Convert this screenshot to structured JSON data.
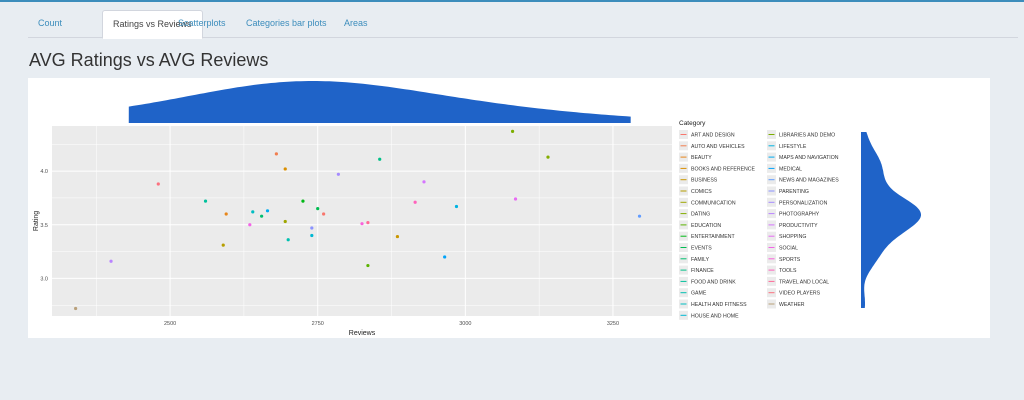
{
  "tabs": [
    {
      "label": "Count",
      "active": false
    },
    {
      "label": "Ratings vs Reviews",
      "active": true
    },
    {
      "label": "Scatterplots",
      "active": false
    },
    {
      "label": "Categories bar plots",
      "active": false
    },
    {
      "label": "Areas",
      "active": false
    }
  ],
  "page_title": "AVG Ratings vs AVG Reviews",
  "chart_data": {
    "type": "scatter",
    "title": "",
    "xlabel": "Reviews",
    "ylabel": "Rating",
    "xlim": [
      2300,
      3350
    ],
    "ylim": [
      2.65,
      4.42
    ],
    "x_ticks": [
      2500,
      2750,
      3000,
      3250
    ],
    "y_ticks": [
      3.0,
      3.5,
      4.0
    ],
    "grid": true,
    "background": "#ebebeb",
    "legend_title": "Category",
    "legend_position": "right",
    "marginal_fill": "#1f63c8",
    "marginal_top_density": "smooth single peak around 2700 reviews",
    "marginal_right_density": "bimodal with peaks near 3.9 and 3.5 rating",
    "series": [
      {
        "name": "ART AND DESIGN",
        "color": "#f8766d",
        "x": 2760,
        "y": 3.6
      },
      {
        "name": "AUTO AND VEHICLES",
        "color": "#f17e4f",
        "x": 2680,
        "y": 4.16
      },
      {
        "name": "BEAUTY",
        "color": "#e7861b",
        "x": 2595,
        "y": 3.6
      },
      {
        "name": "BOOKS AND REFERENCE",
        "color": "#da8f00",
        "x": 2695,
        "y": 4.02
      },
      {
        "name": "BUSINESS",
        "color": "#ca9700",
        "x": 2885,
        "y": 3.39
      },
      {
        "name": "COMICS",
        "color": "#b69e00",
        "x": 2590,
        "y": 3.31
      },
      {
        "name": "COMMUNICATION",
        "color": "#9fa600",
        "x": 2695,
        "y": 3.53
      },
      {
        "name": "DATING",
        "color": "#84ad00",
        "x": 3140,
        "y": 4.13
      },
      {
        "name": "EDUCATION",
        "color": "#5bb300",
        "x": 2835,
        "y": 3.12
      },
      {
        "name": "ENTERTAINMENT",
        "color": "#00b816",
        "x": 2725,
        "y": 3.72
      },
      {
        "name": "EVENTS",
        "color": "#00bc51",
        "x": 2750,
        "y": 3.65
      },
      {
        "name": "FAMILY",
        "color": "#00be6f",
        "x": 2655,
        "y": 3.58
      },
      {
        "name": "FINANCE",
        "color": "#00c087",
        "x": 2855,
        "y": 4.11
      },
      {
        "name": "FOOD AND DRINK",
        "color": "#00c19c",
        "x": 2560,
        "y": 3.72
      },
      {
        "name": "GAME",
        "color": "#00c0b0",
        "x": 2700,
        "y": 3.36
      },
      {
        "name": "HEALTH AND FITNESS",
        "color": "#00bdc2",
        "x": 2640,
        "y": 3.62
      },
      {
        "name": "HOUSE AND HOME",
        "color": "#00b8d3",
        "x": 2740,
        "y": 3.4
      },
      {
        "name": "LIBRARIES AND DEMO",
        "color": "#7cae00",
        "x": 3080,
        "y": 4.37
      },
      {
        "name": "LIFESTYLE",
        "color": "#00b3e2",
        "x": 2985,
        "y": 3.67
      },
      {
        "name": "MAPS AND NAVIGATION",
        "color": "#00abf0",
        "x": 2665,
        "y": 3.63
      },
      {
        "name": "MEDICAL",
        "color": "#00a3fa",
        "x": 2965,
        "y": 3.2
      },
      {
        "name": "NEWS AND MAGAZINES",
        "color": "#619cff",
        "x": 3295,
        "y": 3.58
      },
      {
        "name": "PARENTING",
        "color": "#8b93ff",
        "x": 2740,
        "y": 3.47
      },
      {
        "name": "PERSONALIZATION",
        "color": "#a58aff",
        "x": 2785,
        "y": 3.97
      },
      {
        "name": "PHOTOGRAPHY",
        "color": "#b983ff",
        "x": 2400,
        "y": 3.16
      },
      {
        "name": "PRODUCTIVITY",
        "color": "#d575fe",
        "x": 2930,
        "y": 3.9
      },
      {
        "name": "SHOPPING",
        "color": "#e76bf3",
        "x": 3085,
        "y": 3.74
      },
      {
        "name": "SOCIAL",
        "color": "#f265e7",
        "x": 2635,
        "y": 3.5
      },
      {
        "name": "SPORTS",
        "color": "#fa62db",
        "x": 2825,
        "y": 3.51
      },
      {
        "name": "TOOLS",
        "color": "#ff62bc",
        "x": 2915,
        "y": 3.71
      },
      {
        "name": "TRAVEL AND LOCAL",
        "color": "#ff6a98",
        "x": 2835,
        "y": 3.52
      },
      {
        "name": "VIDEO PLAYERS",
        "color": "#fc717f",
        "x": 2480,
        "y": 3.88
      },
      {
        "name": "WEATHER",
        "color": "#b9a07a",
        "x": 2340,
        "y": 2.72
      }
    ]
  }
}
